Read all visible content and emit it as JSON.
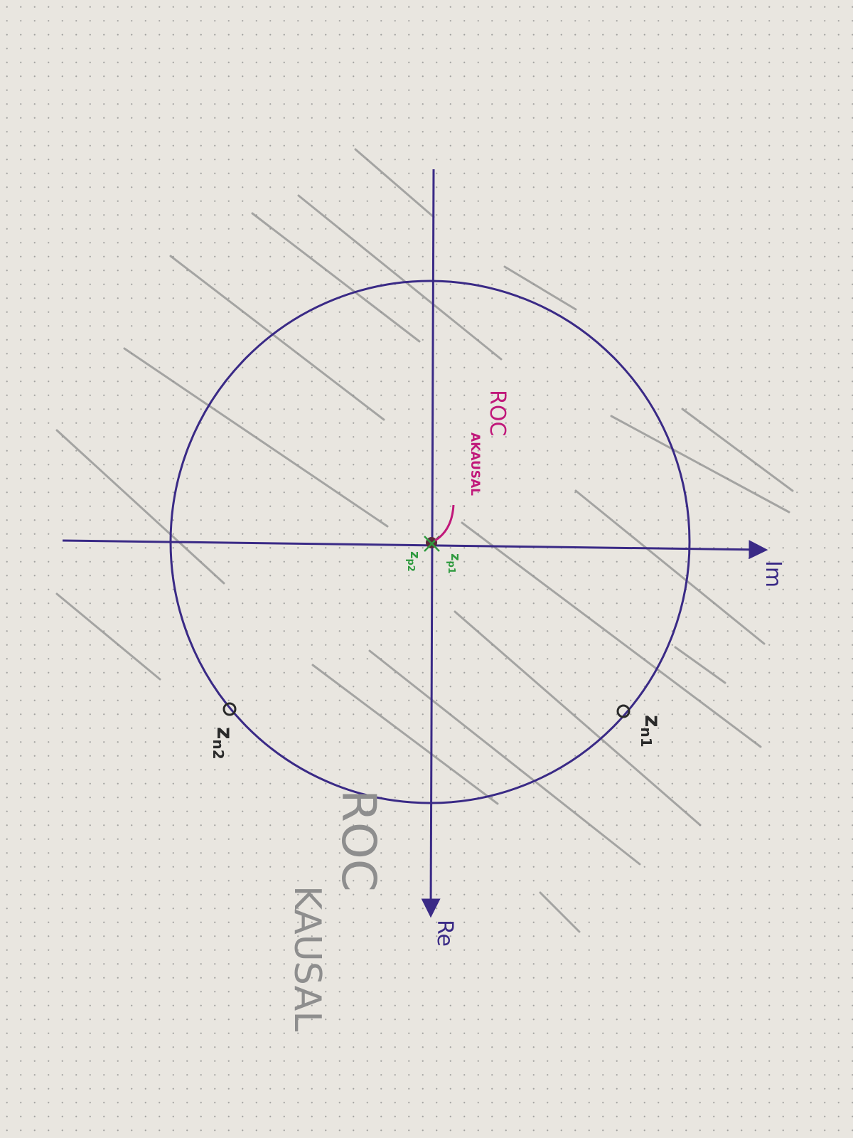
{
  "diagram": {
    "axes": {
      "im_label": "Im",
      "re_label": "Re"
    },
    "unit_circle": {
      "radius": 1
    },
    "poles": [
      {
        "label": "z",
        "subscript": "p1"
      },
      {
        "label": "z",
        "subscript": "p2"
      }
    ],
    "zeros": [
      {
        "label": "z",
        "subscript": "n1"
      },
      {
        "label": "z",
        "subscript": "n2"
      }
    ],
    "roc_labels": {
      "inner_line1": "ROC",
      "inner_line2": "AKAUSAL",
      "outer_line1": "ROC",
      "outer_line2": "KAUSAL"
    },
    "colors": {
      "paper": "#e9e6e0",
      "grid_dot": "#8a8a8a",
      "ink": "#3a2a86",
      "pencil": "#8e8e8e",
      "magenta": "#c0187a",
      "green": "#2e9a3e",
      "zero_ink": "#2a2a2a"
    }
  }
}
